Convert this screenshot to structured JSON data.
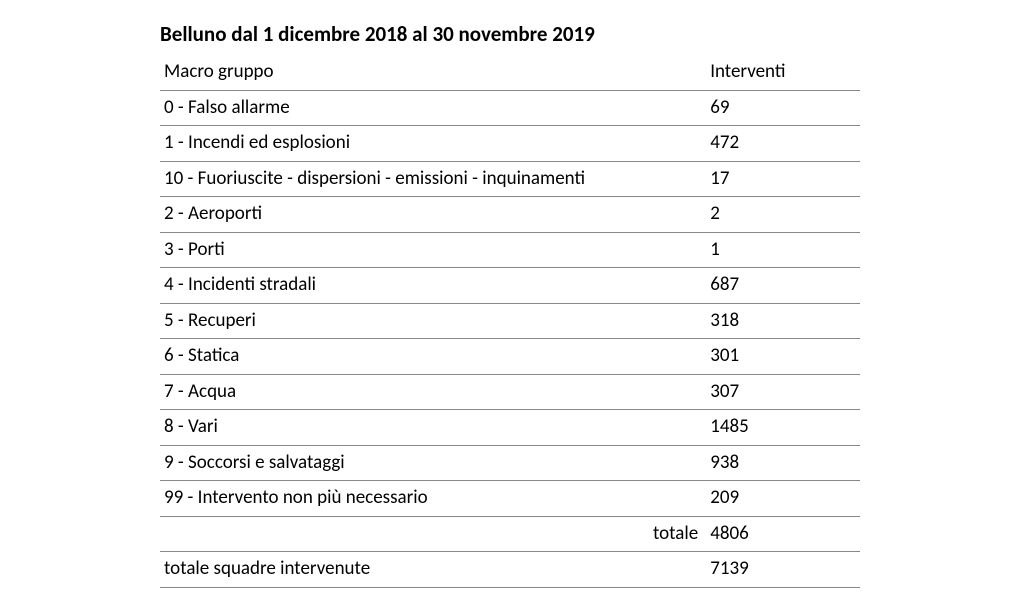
{
  "title": "Belluno dal 1 dicembre 2018 al 30 novembre 2019",
  "columns": {
    "macro_gruppo": "Macro gruppo",
    "interventi": "Interventi"
  },
  "rows": [
    {
      "label": "0 - Falso allarme",
      "value": "69"
    },
    {
      "label": "1 - Incendi ed esplosioni",
      "value": "472"
    },
    {
      "label": "10 - Fuoriuscite - dispersioni - emissioni - inquinamenti",
      "value": "17"
    },
    {
      "label": "2 - Aeroporti",
      "value": "2"
    },
    {
      "label": "3 - Porti",
      "value": "1"
    },
    {
      "label": "4 - Incidenti stradali",
      "value": "687"
    },
    {
      "label": "5 - Recuperi",
      "value": "318"
    },
    {
      "label": "6 - Statica",
      "value": "301"
    },
    {
      "label": "7 - Acqua",
      "value": "307"
    },
    {
      "label": "8 - Vari",
      "value": "1485"
    },
    {
      "label": "9 - Soccorsi e salvataggi",
      "value": "938"
    },
    {
      "label": "99 - Intervento non più necessario",
      "value": "209"
    }
  ],
  "totale_label": "totale",
  "totale_value": "4806",
  "totale_squadre_label": "totale squadre intervenute",
  "totale_squadre_value": "7139"
}
